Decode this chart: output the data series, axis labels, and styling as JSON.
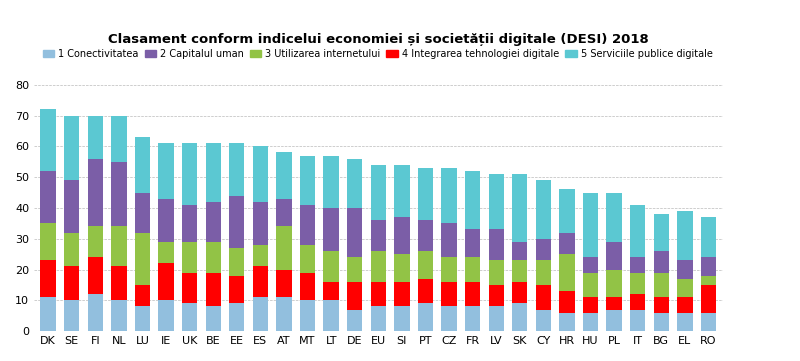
{
  "title": "Clasament conform indicelui economiei și societății digitale (DESI) 2018",
  "categories": [
    "DK",
    "SE",
    "FI",
    "NL",
    "LU",
    "IE",
    "UK",
    "BE",
    "EE",
    "ES",
    "AT",
    "MT",
    "LT",
    "DE",
    "EU",
    "SI",
    "PT",
    "CZ",
    "FR",
    "LV",
    "SK",
    "CY",
    "HR",
    "HU",
    "PL",
    "IT",
    "BG",
    "EL",
    "RO"
  ],
  "series": {
    "1 Conectivitatea": [
      11,
      10,
      12,
      10,
      8,
      10,
      9,
      8,
      9,
      11,
      11,
      10,
      10,
      7,
      8,
      8,
      9,
      8,
      8,
      8,
      9,
      7,
      6,
      6,
      7,
      7,
      6,
      6,
      6
    ],
    "4 Integrarea tehnologiei digitale": [
      12,
      11,
      12,
      11,
      7,
      12,
      10,
      11,
      9,
      10,
      9,
      9,
      6,
      9,
      8,
      8,
      8,
      8,
      8,
      7,
      7,
      8,
      7,
      5,
      4,
      5,
      5,
      5,
      9
    ],
    "3 Utilizarea internetului": [
      12,
      11,
      10,
      13,
      17,
      7,
      10,
      10,
      9,
      7,
      14,
      9,
      10,
      8,
      10,
      9,
      9,
      8,
      8,
      8,
      7,
      8,
      12,
      8,
      9,
      7,
      8,
      6,
      3
    ],
    "2 Capitalul uman": [
      17,
      17,
      22,
      21,
      13,
      14,
      12,
      13,
      17,
      14,
      9,
      13,
      14,
      16,
      10,
      12,
      10,
      11,
      9,
      10,
      6,
      7,
      7,
      5,
      9,
      5,
      7,
      6,
      6
    ],
    "5 Serviciile publice digitale": [
      20,
      21,
      14,
      15,
      18,
      18,
      20,
      19,
      17,
      18,
      15,
      16,
      17,
      16,
      18,
      17,
      17,
      18,
      19,
      18,
      22,
      19,
      14,
      21,
      16,
      17,
      12,
      16,
      13
    ]
  },
  "colors": {
    "1 Conectivitatea": "#92BFDE",
    "2 Capitalul uman": "#7B5EA7",
    "3 Utilizarea internetului": "#92C346",
    "4 Integrarea tehnologiei digitale": "#FF0000",
    "5 Serviciile publice digitale": "#5BC8D2"
  },
  "ylim": [
    0,
    80
  ],
  "yticks": [
    0,
    10,
    20,
    30,
    40,
    50,
    60,
    70,
    80
  ],
  "legend_order": [
    "1 Conectivitatea",
    "2 Capitalul uman",
    "3 Utilizarea internetului",
    "4 Integrarea tehnologiei digitale",
    "5 Serviciile publice digitale"
  ],
  "stack_order": [
    "1 Conectivitatea",
    "4 Integrarea tehnologiei digitale",
    "3 Utilizarea internetului",
    "2 Capitalul uman",
    "5 Serviciile publice digitale"
  ]
}
